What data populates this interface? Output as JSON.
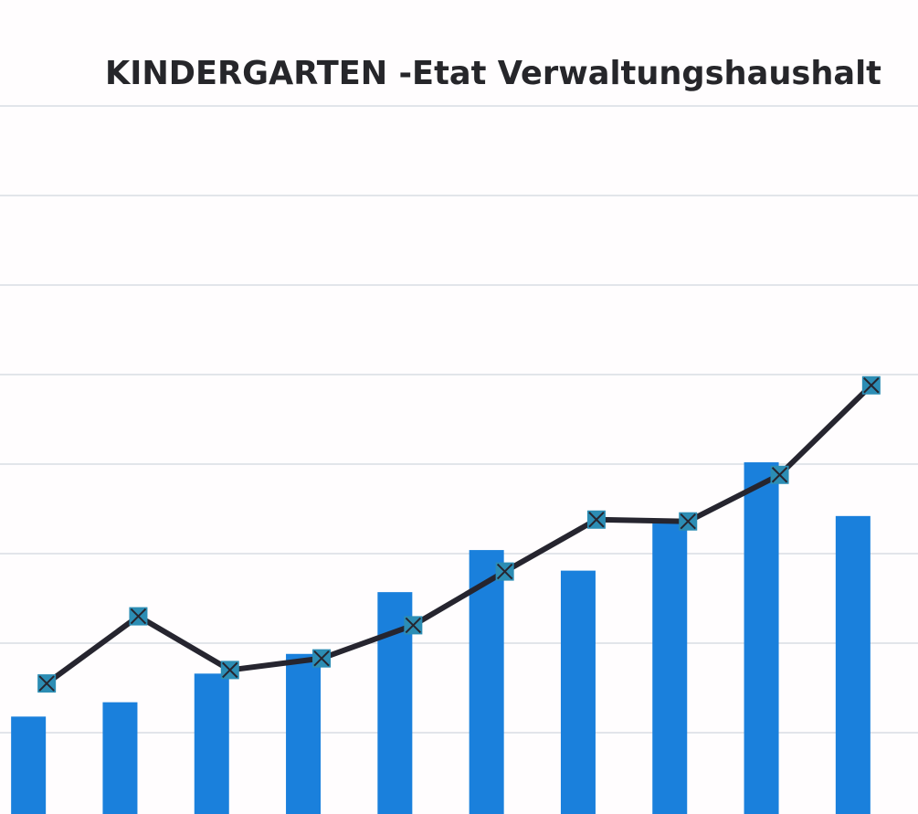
{
  "chart_data": {
    "type": "bar_line",
    "title": "KINDERGARTEN -Etat Verwaltungshaushalt",
    "categories": [
      null,
      null,
      null,
      null,
      null,
      null,
      null,
      null,
      null,
      null
    ],
    "series": [
      {
        "type": "bar",
        "color": "#1a80dc",
        "values": [
          1.18,
          1.34,
          1.66,
          1.88,
          2.57,
          3.04,
          2.81,
          3.35,
          4.02,
          3.42
        ]
      },
      {
        "type": "line",
        "color": "#26252f",
        "marker_color": "#2c8db4",
        "values": [
          1.55,
          2.3,
          1.7,
          1.83,
          2.2,
          2.8,
          3.38,
          3.36,
          3.88,
          4.88
        ]
      }
    ],
    "ylim": [
      0,
      9
    ],
    "yticks": [
      1,
      2,
      3,
      4,
      5,
      6,
      7,
      8
    ],
    "grid": true
  }
}
